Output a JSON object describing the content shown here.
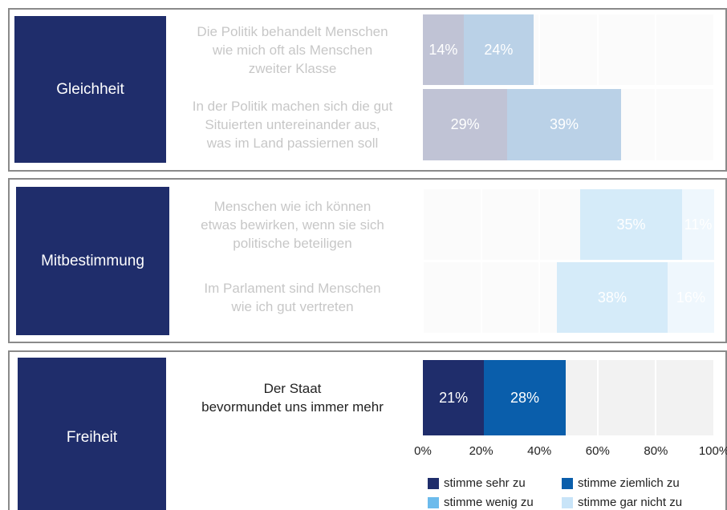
{
  "chart_data": [
    {
      "type": "bar",
      "title": "Gleichheit",
      "dimmed": true,
      "categories": [
        "Die Politik behandelt Menschen\nwie mich oft als Menschen\nzweiter Klasse",
        "In der Politik machen sich die gut\nSituierten untereinander aus,\nwas im Land passiernen soll"
      ],
      "series": [
        {
          "color": "#1f2d6b",
          "values": [
            14,
            29
          ],
          "value_labels": [
            "14%",
            "29%"
          ]
        },
        {
          "color": "#0a5eab",
          "values": [
            24,
            39
          ],
          "value_labels": [
            "24%",
            "39%"
          ]
        },
        {
          "color": "#6cbbec",
          "values": [
            null,
            null
          ],
          "value_labels": [
            null,
            null
          ]
        },
        {
          "color": "#c8e4f8",
          "values": [
            null,
            null
          ],
          "value_labels": [
            null,
            null
          ]
        }
      ],
      "xlim": [
        0,
        100
      ],
      "xticks": [
        0,
        20,
        40,
        60,
        80,
        100
      ]
    },
    {
      "type": "bar",
      "title": "Mitbestimmung",
      "dimmed": true,
      "categories": [
        "Menschen wie ich können\netwas bewirken, wenn sie sich\npolitische beteiligen",
        "Im Parlament sind Menschen\nwie ich gut vertreten"
      ],
      "series": [
        {
          "color": "#1f2d6b",
          "values": [
            null,
            null
          ],
          "value_labels": [
            null,
            null
          ]
        },
        {
          "color": "#0a5eab",
          "values": [
            null,
            null
          ],
          "value_labels": [
            null,
            null
          ]
        },
        {
          "color": "#6cbbec",
          "values": [
            35,
            38
          ],
          "value_labels": [
            "35%",
            "38%"
          ]
        },
        {
          "color": "#c8e4f8",
          "values": [
            11,
            16
          ],
          "value_labels": [
            "11%",
            "16%"
          ]
        }
      ],
      "xlim": [
        0,
        100
      ],
      "xticks": [
        0,
        20,
        40,
        60,
        80,
        100
      ]
    },
    {
      "type": "bar",
      "title": "Freiheit",
      "dimmed": false,
      "categories": [
        "Der Staat\nbevormundet uns immer mehr"
      ],
      "series": [
        {
          "name": "stimme sehr zu",
          "color": "#1f2d6b",
          "values": [
            21
          ],
          "value_labels": [
            "21%"
          ]
        },
        {
          "name": "stimme ziemlich zu",
          "color": "#0a5eab",
          "values": [
            28
          ],
          "value_labels": [
            "28%"
          ]
        },
        {
          "name": "stimme wenig zu",
          "color": "#6cbbec",
          "values": [
            null
          ],
          "value_labels": [
            null
          ]
        },
        {
          "name": "stimme gar nicht zu",
          "color": "#c8e4f8",
          "values": [
            null
          ],
          "value_labels": [
            null
          ]
        }
      ],
      "xlim": [
        0,
        100
      ],
      "xticks": [
        {
          "value": 0,
          "label": "0%"
        },
        {
          "value": 20,
          "label": "20%"
        },
        {
          "value": 40,
          "label": "40%"
        },
        {
          "value": 60,
          "label": "60%"
        },
        {
          "value": 80,
          "label": "80%"
        },
        {
          "value": 100,
          "label": "100%"
        }
      ],
      "legend": "bottom"
    }
  ]
}
